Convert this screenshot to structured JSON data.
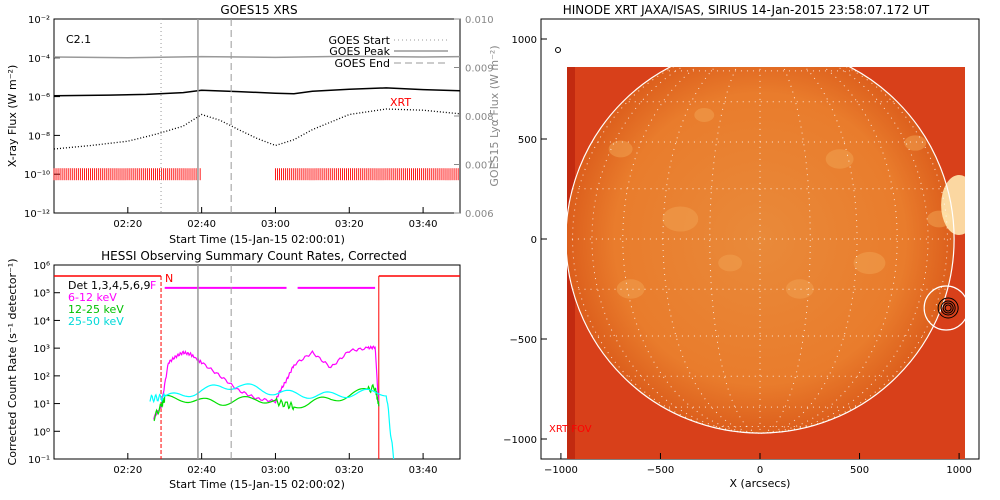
{
  "chart_data": [
    {
      "type": "line",
      "title": "GOES15 XRS",
      "xlabel": "Start Time (15-Jan-15 02:00:01)",
      "ylabel": "X-ray Flux (W m⁻²)",
      "ylabel_right": "GOES15 Lyα Flux (W m⁻²)",
      "x_ticks": [
        "02:20",
        "02:40",
        "03:00",
        "03:20",
        "03:40"
      ],
      "x_range_min": [
        0,
        110
      ],
      "y_scale": "log",
      "ylim": [
        1e-12,
        0.01
      ],
      "y_ticks": [
        "10⁻¹²",
        "10⁻¹⁰",
        "10⁻⁸",
        "10⁻⁶",
        "10⁻⁴",
        "10⁻²"
      ],
      "y2lim": [
        0.006,
        0.01
      ],
      "y2_ticks": [
        "0.006",
        "0.007",
        "0.008",
        "0.009",
        "0.010"
      ],
      "class_label": "C2.1",
      "xrt_label": "XRT",
      "legend": [
        {
          "name": "GOES Start",
          "style": "dotted"
        },
        {
          "name": "GOES Peak",
          "style": "solid"
        },
        {
          "name": "GOES End",
          "style": "dashed"
        }
      ],
      "legend_position": "top-right",
      "event_lines_min": {
        "start": 29,
        "peak": 39,
        "end": 48
      },
      "series": [
        {
          "key": "upper",
          "color": "#999999",
          "style": "solid",
          "x": [
            0,
            20,
            40,
            60,
            80,
            100,
            110
          ],
          "y": [
            0.00011,
            0.0001,
            0.000115,
            0.000105,
            0.00012,
            0.00011,
            0.000115
          ]
        },
        {
          "key": "long",
          "color": "#000000",
          "style": "solid",
          "x": [
            0,
            15,
            25,
            35,
            40,
            50,
            60,
            65,
            70,
            80,
            90,
            100,
            110
          ],
          "y": [
            1.1e-06,
            1.2e-06,
            1.3e-06,
            1.6e-06,
            2.1e-06,
            1.8e-06,
            1.5e-06,
            1.4e-06,
            1.9e-06,
            2.4e-06,
            2.8e-06,
            2.3e-06,
            2e-06
          ]
        },
        {
          "key": "short",
          "color": "#000000",
          "style": "dotted",
          "x": [
            0,
            10,
            20,
            28,
            35,
            40,
            45,
            50,
            55,
            60,
            65,
            70,
            80,
            90,
            100,
            110
          ],
          "y": [
            2e-09,
            3e-09,
            5e-09,
            1.2e-08,
            3e-08,
            1.2e-07,
            6e-08,
            2e-08,
            7e-09,
            3e-09,
            6e-09,
            2e-08,
            1.2e-07,
            2.3e-07,
            2e-07,
            1.3e-07
          ]
        }
      ],
      "xrt_obs_min": [
        [
          0,
          40
        ],
        [
          60,
          110
        ]
      ],
      "xrt_obs_level": 1e-10
    },
    {
      "type": "line",
      "title": "HESSI Observing Summary Count Rates, Corrected",
      "xlabel": "Start Time (15-Jan-15 02:00:02)",
      "ylabel": "Corrected Count Rate (s⁻¹ detector⁻¹)",
      "x_ticks": [
        "02:20",
        "02:40",
        "03:00",
        "03:20",
        "03:40"
      ],
      "x_range_min": [
        0,
        110
      ],
      "y_scale": "log",
      "ylim": [
        0.1,
        1000000.0
      ],
      "y_ticks": [
        "10⁻¹",
        "10⁰",
        "10¹",
        "10²",
        "10³",
        "10⁴",
        "10⁵",
        "10⁶"
      ],
      "legend_position": "top-left",
      "legend": [
        {
          "name": "Det 1,3,4,5,6,9",
          "color": "#000000"
        },
        {
          "name": "6-12 keV",
          "color": "#ff00ff"
        },
        {
          "name": "12-25 keV",
          "color": "#00e000"
        },
        {
          "name": "25-50 keV",
          "color": "#00ffff"
        }
      ],
      "flags": {
        "night": "N",
        "flare": "F"
      },
      "event_lines_min": {
        "start": 29,
        "peak": 39,
        "end": 48
      },
      "night_boundaries_min": [
        29,
        88
      ],
      "series": [
        {
          "name": "6-12 keV",
          "color": "#ff00ff",
          "x": [
            27,
            29,
            31,
            33,
            35,
            37,
            40,
            45,
            50,
            55,
            60,
            61,
            63,
            65,
            70,
            75,
            80,
            85,
            87,
            88
          ],
          "y": [
            3,
            8,
            300,
            500,
            700,
            600,
            300,
            100,
            30,
            15,
            12,
            25,
            70,
            250,
            700,
            200,
            800,
            1000,
            1100,
            8
          ]
        },
        {
          "name": "12-25 keV",
          "color": "#00e000",
          "x": [
            27,
            29,
            30,
            35,
            40,
            45,
            50,
            55,
            60,
            63,
            65,
            70,
            75,
            80,
            85,
            87,
            88
          ],
          "y": [
            3,
            8,
            15,
            15,
            12,
            11,
            13,
            15,
            12,
            9,
            8,
            12,
            14,
            20,
            30,
            40,
            8
          ]
        },
        {
          "name": "25-50 keV",
          "color": "#00ffff",
          "x": [
            26,
            28,
            30,
            35,
            40,
            45,
            50,
            55,
            60,
            65,
            70,
            75,
            80,
            85,
            90,
            92
          ],
          "y": [
            15,
            16,
            17,
            20,
            30,
            40,
            45,
            35,
            25,
            22,
            20,
            20,
            22,
            25,
            25,
            0.1
          ]
        }
      ],
      "red_upper_level": 400000.0,
      "magenta_upper": {
        "x_min": [
          30,
          63
        ],
        "x2_min": [
          66,
          87
        ],
        "level": 150000.0
      }
    },
    {
      "type": "image",
      "title": "HINODE XRT JAXA/ISAS, SIRIUS 14-Jan-2015 23:58:07.172 UT",
      "xlabel": "X (arcsecs)",
      "ylabel": "",
      "xlim": [
        -1100,
        1100
      ],
      "ylim": [
        -1100,
        1100
      ],
      "x_ticks": [
        "−1000",
        "−500",
        "0",
        "500",
        "1000"
      ],
      "y_ticks": [
        "−1000",
        "−500",
        "0",
        "500",
        "1000"
      ],
      "fov_label": "XRT FOV",
      "disk_radius_arcsec": 975,
      "fov_arcsec": {
        "x": [
          -970,
          1100
        ],
        "y": [
          -1100,
          870
        ]
      },
      "flare_location_arcsec": {
        "x": 935,
        "y": -345
      },
      "colors": {
        "background": "#d8401a",
        "disk": "#e87428",
        "bright": "#ffd890",
        "limb": "#ffffff",
        "axis_text": "#000000",
        "fov_label": "#ff0000"
      }
    }
  ]
}
